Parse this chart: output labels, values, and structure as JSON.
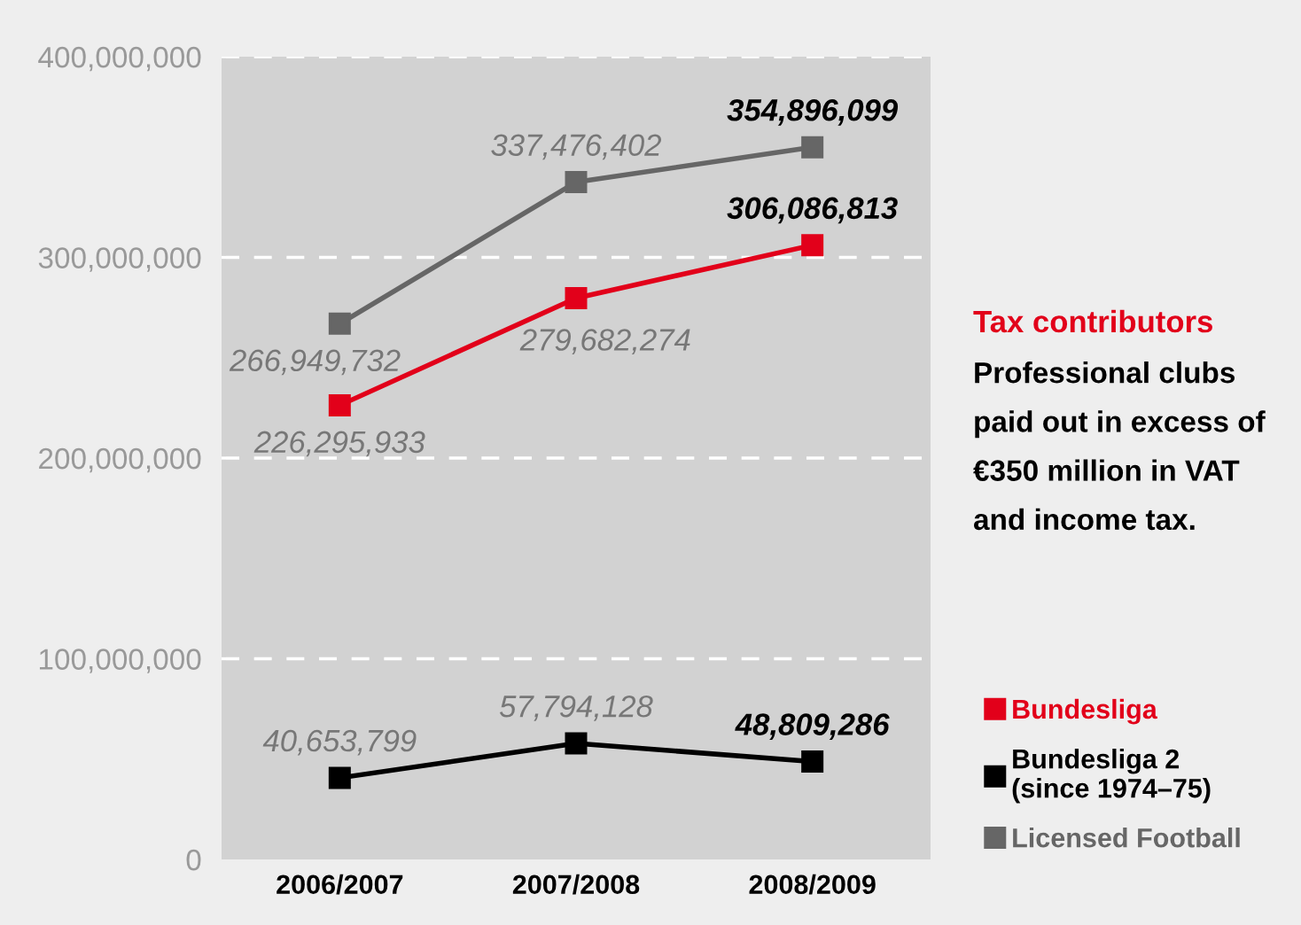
{
  "chart_data": {
    "type": "line",
    "categories": [
      "2006/2007",
      "2007/2008",
      "2008/2009"
    ],
    "series": [
      {
        "name": "Bundesliga",
        "color": "#e2001a",
        "values": [
          226295933,
          279682274,
          306086813
        ],
        "value_labels": [
          "226,295,933",
          "279,682,274",
          "306,086,813"
        ]
      },
      {
        "name": "Bundesliga 2\n(since 1974–75)",
        "color": "#000000",
        "values": [
          40653799,
          57794128,
          48809286
        ],
        "value_labels": [
          "40,653,799",
          "57,794,128",
          "48,809,286"
        ]
      },
      {
        "name": "Licensed Football",
        "color": "#666666",
        "values": [
          266949732,
          337476402,
          354896099
        ],
        "value_labels": [
          "266,949,732",
          "337,476,402",
          "354,896,099"
        ]
      }
    ],
    "ylim": [
      0,
      400000000
    ],
    "yticks": [
      {
        "value": 0,
        "label": "0"
      },
      {
        "value": 100000000,
        "label": "100,000,000"
      },
      {
        "value": 200000000,
        "label": "200,000,000"
      },
      {
        "value": 300000000,
        "label": "300,000,000"
      },
      {
        "value": 400000000,
        "label": "400,000,000"
      }
    ],
    "grid": "y",
    "marker": "square",
    "line_style": "solid",
    "legend": "bottom right",
    "annotations": [
      "Tax contributors",
      "Professional clubs\npaid out in excess of\n€350 million in VAT\nand income tax."
    ]
  }
}
